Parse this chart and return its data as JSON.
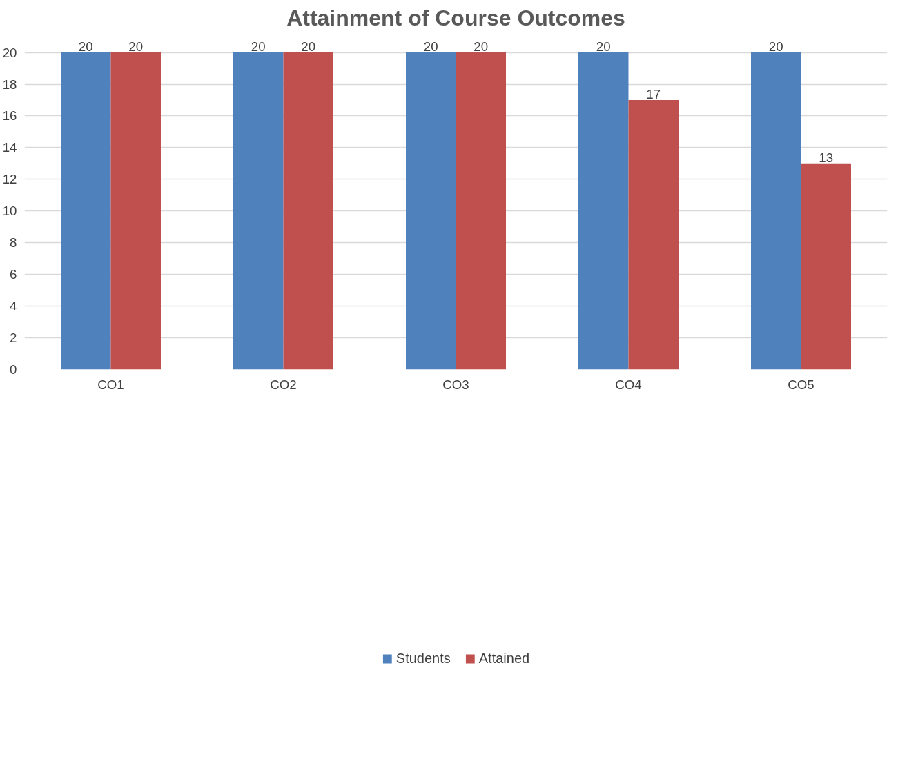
{
  "chart_data": {
    "type": "bar",
    "title": "Attainment of Course Outcomes",
    "categories": [
      "CO1",
      "CO2",
      "CO3",
      "CO4",
      "CO5"
    ],
    "series": [
      {
        "name": "Students",
        "color": "#4f81bd",
        "values": [
          20,
          20,
          20,
          20,
          20
        ]
      },
      {
        "name": "Attained",
        "color": "#c0504d",
        "values": [
          20,
          20,
          20,
          17,
          13
        ]
      }
    ],
    "ylim": [
      0,
      20
    ],
    "yticks": [
      0,
      2,
      4,
      6,
      8,
      10,
      12,
      14,
      16,
      18,
      20
    ],
    "grid": "y",
    "legend": "bottom",
    "data_labels": true
  }
}
